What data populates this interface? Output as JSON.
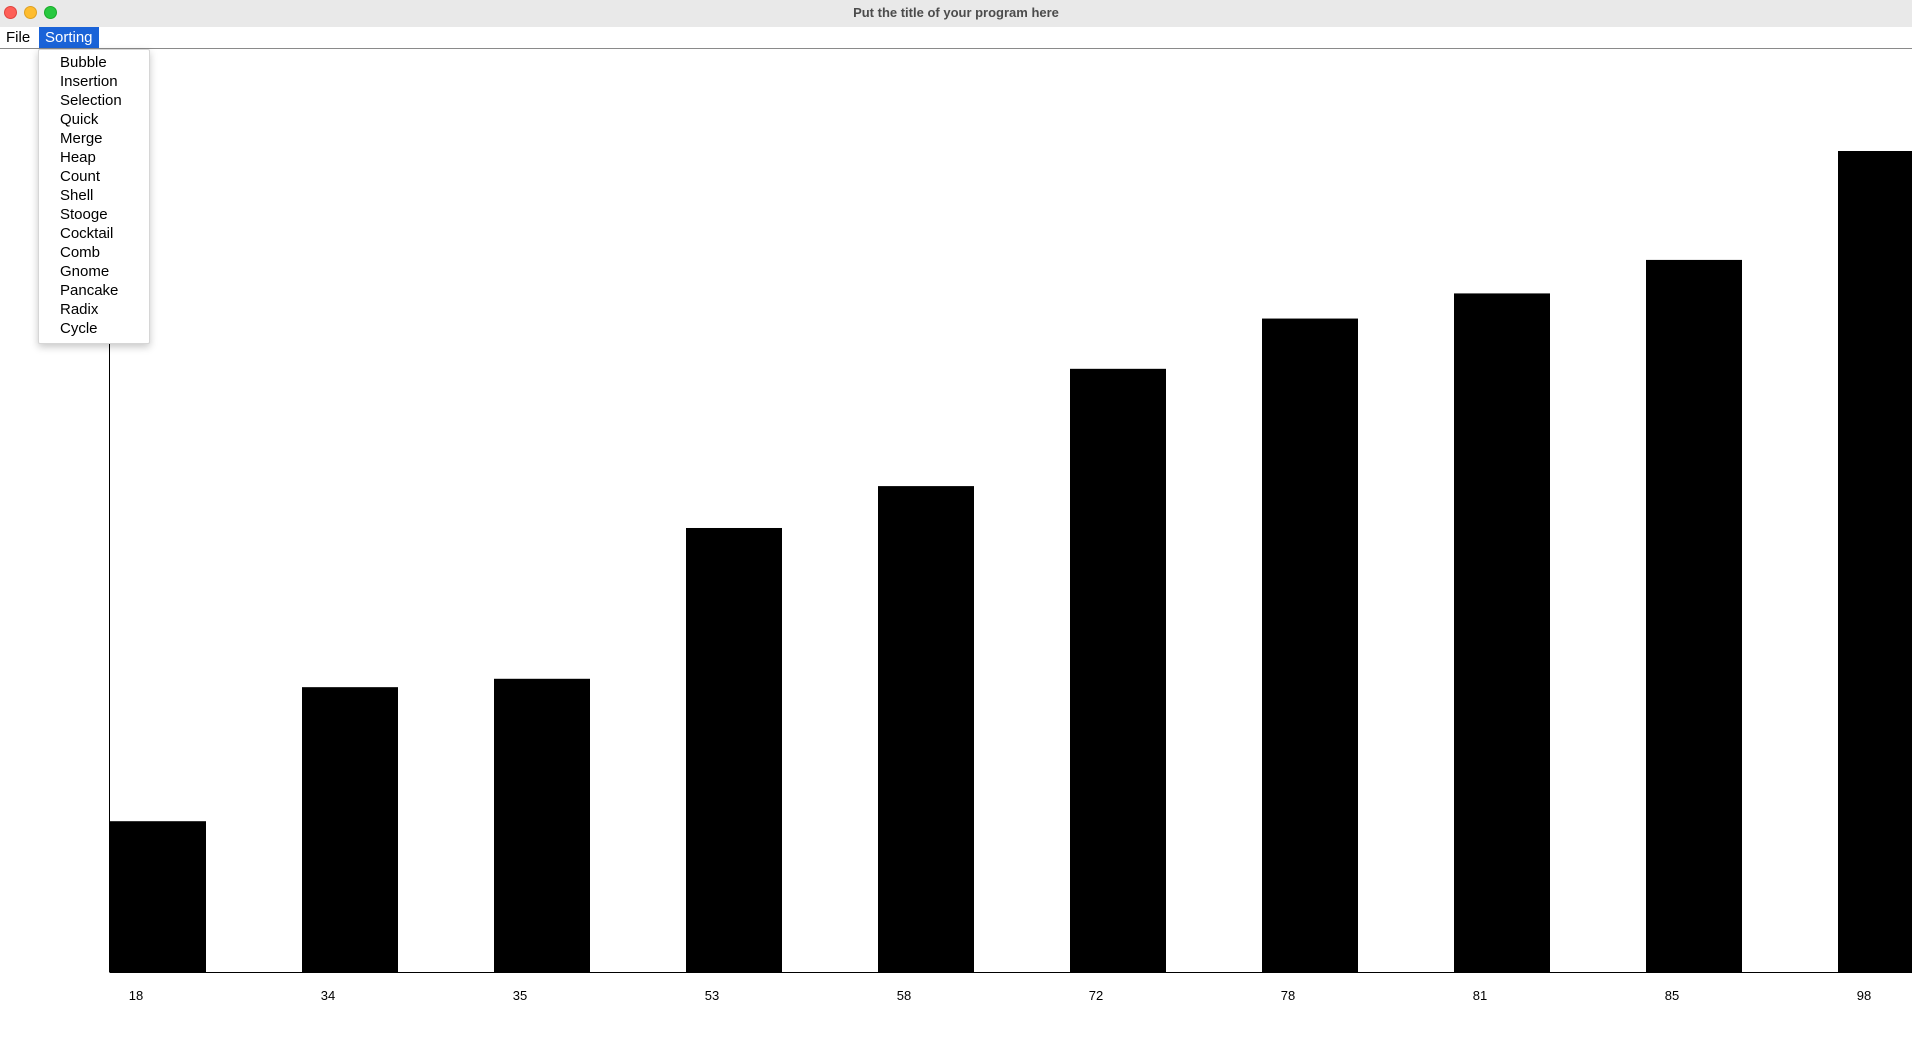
{
  "window": {
    "title": "Put the title of your program here"
  },
  "menubar": {
    "file_label": "File",
    "sorting_label": "Sorting"
  },
  "sorting_menu": {
    "items": [
      "Bubble",
      "Insertion",
      "Selection",
      "Quick",
      "Merge",
      "Heap",
      "Count",
      "Shell",
      "Stooge",
      "Cocktail",
      "Comb",
      "Gnome",
      "Pancake",
      "Radix",
      "Cycle"
    ]
  },
  "colors": {
    "menu_highlight": "#1a63d8",
    "bar": "#000000",
    "close": "#fe5f57",
    "minimize": "#febc2e",
    "maximize": "#28c840"
  },
  "chart_data": {
    "type": "bar",
    "categories": [
      "18",
      "34",
      "35",
      "53",
      "58",
      "72",
      "78",
      "81",
      "85",
      "98"
    ],
    "values": [
      18,
      34,
      35,
      53,
      58,
      72,
      78,
      81,
      85,
      98
    ],
    "title": "",
    "xlabel": "",
    "ylabel": "",
    "ylim": [
      0,
      98
    ],
    "grid": false
  }
}
